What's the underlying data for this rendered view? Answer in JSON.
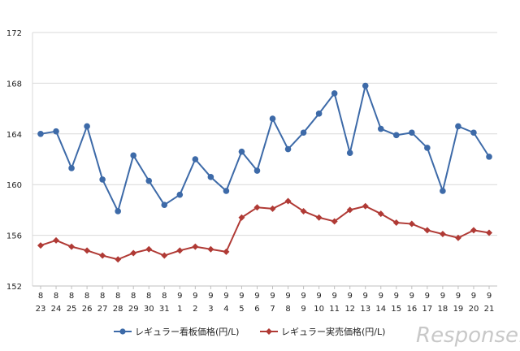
{
  "chart_data": {
    "type": "line",
    "title": "",
    "xlabel": "",
    "ylabel": "",
    "ylim": [
      152,
      172
    ],
    "yticks": [
      152,
      156,
      160,
      164,
      168,
      172
    ],
    "grid": true,
    "legend_position": "bottom",
    "categories": [
      {
        "month": "8",
        "day": "23"
      },
      {
        "month": "8",
        "day": "24"
      },
      {
        "month": "8",
        "day": "25"
      },
      {
        "month": "8",
        "day": "26"
      },
      {
        "month": "8",
        "day": "27"
      },
      {
        "month": "8",
        "day": "28"
      },
      {
        "month": "8",
        "day": "29"
      },
      {
        "month": "8",
        "day": "30"
      },
      {
        "month": "8",
        "day": "31"
      },
      {
        "month": "9",
        "day": "1"
      },
      {
        "month": "9",
        "day": "2"
      },
      {
        "month": "9",
        "day": "3"
      },
      {
        "month": "9",
        "day": "4"
      },
      {
        "month": "9",
        "day": "5"
      },
      {
        "month": "9",
        "day": "6"
      },
      {
        "month": "9",
        "day": "7"
      },
      {
        "month": "9",
        "day": "8"
      },
      {
        "month": "9",
        "day": "9"
      },
      {
        "month": "9",
        "day": "10"
      },
      {
        "month": "9",
        "day": "11"
      },
      {
        "month": "9",
        "day": "12"
      },
      {
        "month": "9",
        "day": "13"
      },
      {
        "month": "9",
        "day": "14"
      },
      {
        "month": "9",
        "day": "15"
      },
      {
        "month": "9",
        "day": "16"
      },
      {
        "month": "9",
        "day": "17"
      },
      {
        "month": "9",
        "day": "18"
      },
      {
        "month": "9",
        "day": "19"
      },
      {
        "month": "9",
        "day": "20"
      },
      {
        "month": "9",
        "day": "21"
      }
    ],
    "series": [
      {
        "name": "レギュラー看板価格(円/L)",
        "color": "#3d6aa8",
        "marker": "circle",
        "values": [
          164.0,
          164.2,
          161.3,
          164.6,
          160.4,
          157.9,
          162.3,
          160.3,
          158.4,
          159.2,
          162.0,
          160.6,
          159.5,
          162.6,
          161.1,
          165.2,
          162.8,
          164.1,
          165.6,
          167.2,
          162.5,
          167.8,
          164.4,
          163.9,
          164.1,
          162.9,
          159.5,
          164.6,
          164.1,
          162.2
        ]
      },
      {
        "name": "レギュラー実売価格(円/L)",
        "color": "#b03a35",
        "marker": "diamond",
        "values": [
          155.2,
          155.6,
          155.1,
          154.8,
          154.4,
          154.1,
          154.6,
          154.9,
          154.4,
          154.8,
          155.1,
          154.9,
          154.7,
          157.4,
          158.2,
          158.1,
          158.7,
          157.9,
          157.4,
          157.1,
          158.0,
          158.3,
          157.7,
          157.0,
          156.9,
          156.4,
          156.1,
          155.8,
          156.4,
          156.2
        ]
      }
    ]
  },
  "watermark": {
    "text": "Response."
  }
}
